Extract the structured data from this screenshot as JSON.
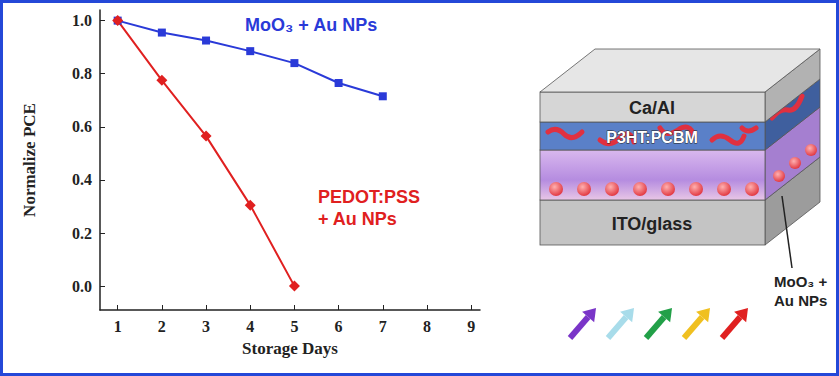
{
  "chart_data": {
    "type": "line",
    "x_label": "Storage Days",
    "y_label": "Normalize PCE",
    "x": [
      1,
      2,
      3,
      4,
      5,
      6,
      7
    ],
    "series": [
      {
        "name": "MoO₃ + Au NPs",
        "color": "#2a3ad8",
        "marker": "square",
        "line_style": "solid",
        "values": [
          1.0,
          0.955,
          0.925,
          0.885,
          0.84,
          0.765,
          0.715
        ]
      },
      {
        "name": "PEDOT:PSS + Au NPs",
        "color": "#e02020",
        "marker": "diamond",
        "line_style": "solid",
        "values": [
          1.0,
          0.775,
          0.565,
          0.305,
          0.0,
          null,
          null
        ]
      }
    ],
    "xlim": [
      0.6,
      9.2
    ],
    "xticks": [
      1,
      2,
      3,
      4,
      5,
      6,
      7,
      8,
      9
    ],
    "ylim": [
      -0.09,
      1.04
    ],
    "yticks": [
      {
        "value": 0,
        "label": "0.0"
      },
      {
        "value": 0.2,
        "label": "0.2"
      },
      {
        "value": 0.4,
        "label": "0.4"
      },
      {
        "value": 0.6,
        "label": "0.6"
      },
      {
        "value": 0.8,
        "label": "0.8"
      },
      {
        "value": 1.0,
        "label": "1.0"
      }
    ],
    "grid": false
  },
  "diagram": {
    "layers": [
      "Ca/Al",
      "P3HT:PCBM",
      "ITO/glass"
    ],
    "interlayer_label": "MoO₃ + Au NPs"
  }
}
